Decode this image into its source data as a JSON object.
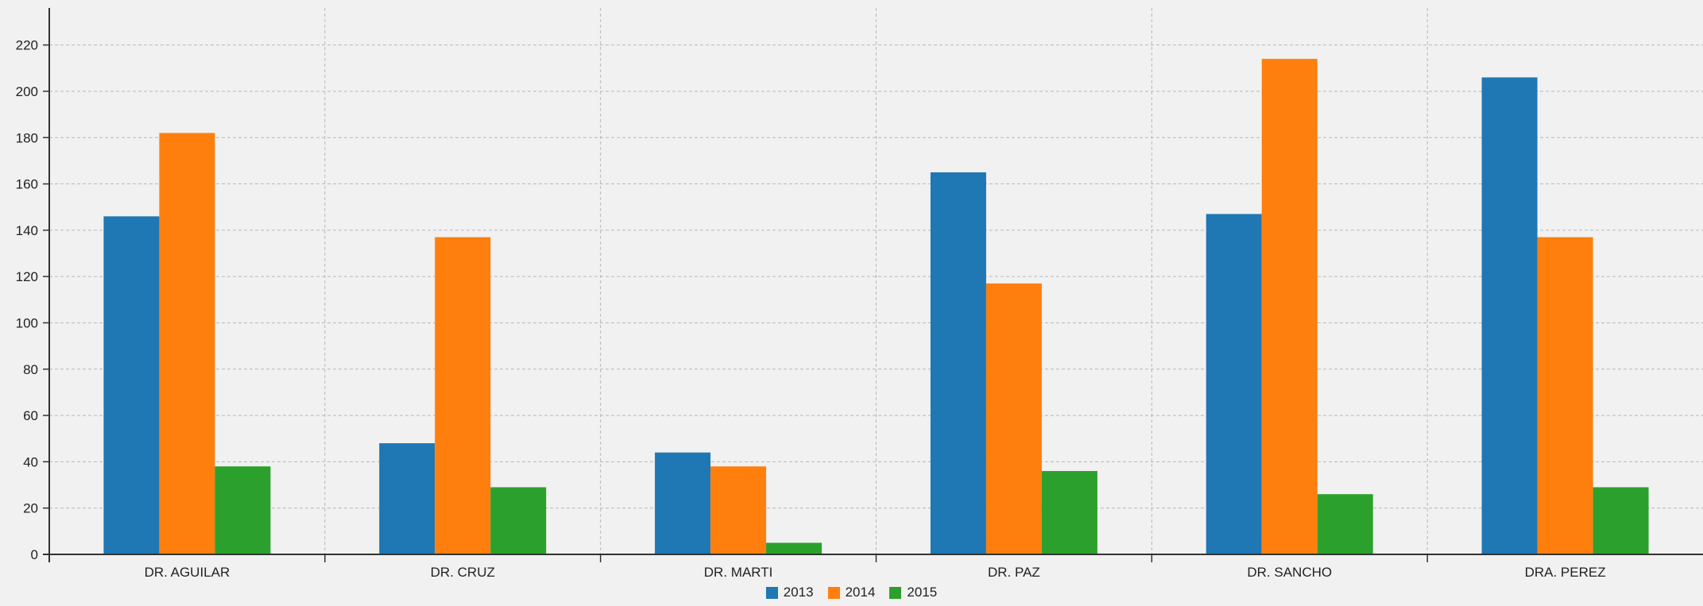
{
  "chart_data": {
    "type": "bar",
    "categories": [
      "DR. AGUILAR",
      "DR. CRUZ",
      "DR. MARTI",
      "DR. PAZ",
      "DR. SANCHO",
      "DRA. PEREZ"
    ],
    "series": [
      {
        "name": "2013",
        "color": "#1f77b4",
        "values": [
          146,
          48,
          44,
          165,
          147,
          206
        ]
      },
      {
        "name": "2014",
        "color": "#ff7f0e",
        "values": [
          182,
          137,
          38,
          117,
          214,
          137
        ]
      },
      {
        "name": "2015",
        "color": "#2ca02c",
        "values": [
          38,
          29,
          5,
          36,
          26,
          29
        ]
      }
    ],
    "yticks": [
      "0",
      "20",
      "40",
      "60",
      "80",
      "100",
      "120",
      "140",
      "160",
      "180",
      "200",
      "220"
    ],
    "ylim": [
      0,
      236
    ],
    "grid": true,
    "legend_position": "bottom-center"
  }
}
